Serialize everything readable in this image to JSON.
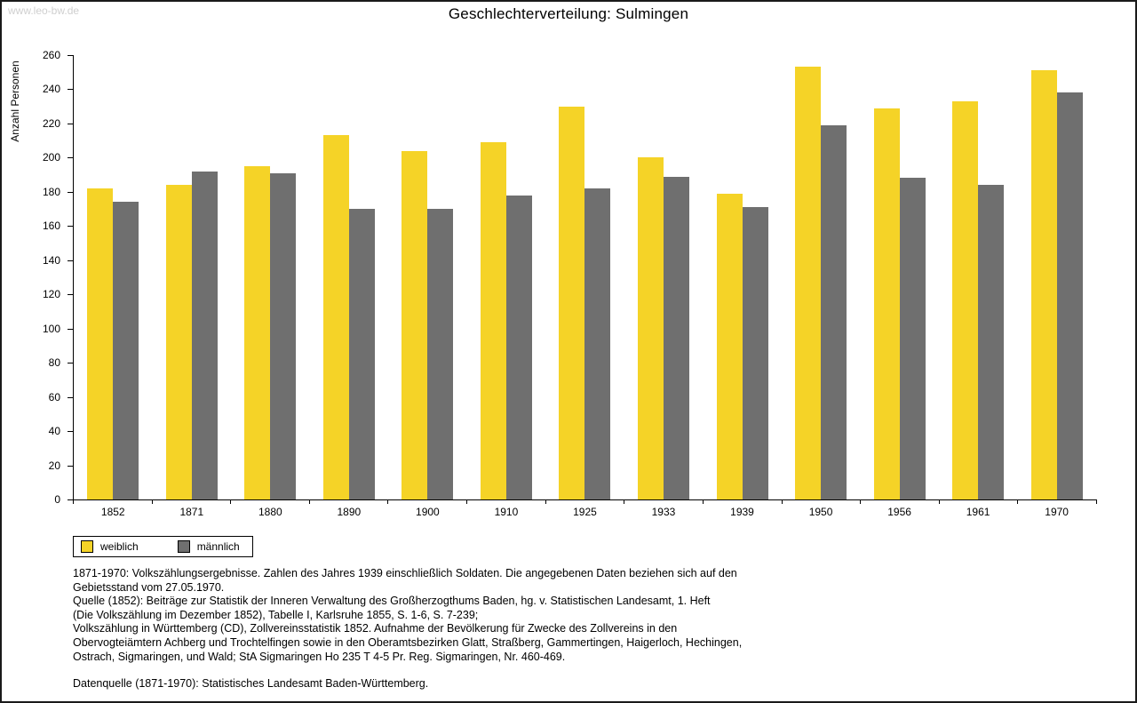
{
  "watermark": "www.leo-bw.de",
  "chart_data": {
    "type": "bar",
    "title": "Geschlechterverteilung: Sulmingen",
    "xlabel": "",
    "ylabel": "Anzahl Personen",
    "categories": [
      "1852",
      "1871",
      "1880",
      "1890",
      "1900",
      "1910",
      "1925",
      "1933",
      "1939",
      "1950",
      "1956",
      "1961",
      "1970"
    ],
    "series": [
      {
        "name": "weiblich",
        "color": "#f5d327",
        "values": [
          182,
          184,
          195,
          213,
          204,
          209,
          230,
          200,
          179,
          253,
          229,
          233,
          251
        ]
      },
      {
        "name": "männlich",
        "color": "#6f6f6f",
        "values": [
          174,
          192,
          191,
          170,
          170,
          178,
          182,
          189,
          171,
          219,
          188,
          184,
          238
        ]
      }
    ],
    "ylim": [
      0,
      260
    ],
    "ytick_step": 20,
    "grid": false,
    "legend_position": "bottom-left"
  },
  "footnotes": {
    "lines": [
      "1871-1970: Volkszählungsergebnisse. Zahlen des Jahres 1939 einschließlich Soldaten. Die angegebenen Daten beziehen sich auf den",
      "Gebietsstand vom 27.05.1970.",
      "Quelle (1852): Beiträge zur Statistik der Inneren Verwaltung des Großherzogthums Baden, hg. v. Statistischen Landesamt, 1. Heft",
      "(Die Volkszählung im Dezember 1852), Tabelle I, Karlsruhe 1855, S. 1-6, S. 7-239;",
      "Volkszählung in Württemberg (CD), Zollvereinsstatistik 1852. Aufnahme der Bevölkerung für Zwecke des Zollvereins in den",
      "Obervogteiämtern Achberg und Trochtelfingen sowie in den Oberamtsbezirken Glatt, Straßberg, Gammertingen, Haigerloch, Hechingen,",
      "Ostrach, Sigmaringen, und Wald; StA Sigmaringen Ho 235 T 4-5 Pr. Reg. Sigmaringen, Nr. 460-469."
    ],
    "datasource": "Datenquelle (1871-1970): Statistisches Landesamt Baden-Württemberg."
  }
}
